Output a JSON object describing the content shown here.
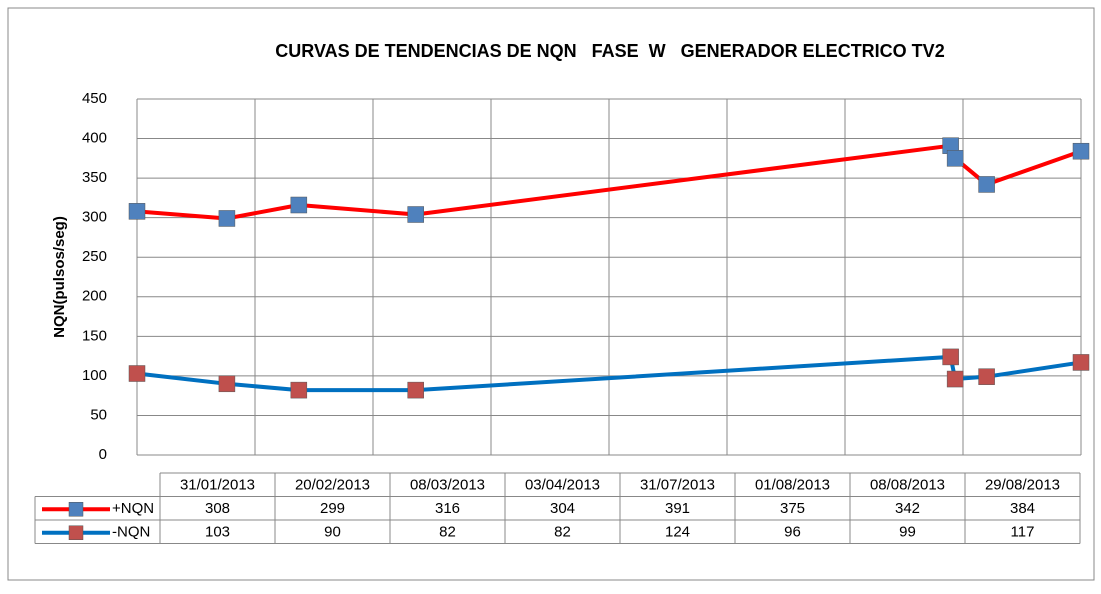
{
  "chart_data": {
    "type": "line",
    "title": "CURVAS DE TENDENCIAS DE NQN   FASE  W   GENERADOR ELECTRICO TV2",
    "y_label": "NQN(pulsos/seg)",
    "x": [
      "31/01/2013",
      "20/02/2013",
      "08/03/2013",
      "03/04/2013",
      "31/07/2013",
      "01/08/2013",
      "08/08/2013",
      "29/08/2013"
    ],
    "series": [
      {
        "name": "+NQN",
        "color": "#ff0000",
        "marker_color": "#4f81bd",
        "values": [
          308,
          299,
          316,
          304,
          391,
          375,
          342,
          384
        ]
      },
      {
        "name": "-NQN",
        "color": "#0070c0",
        "marker_color": "#c0504d",
        "values": [
          103,
          90,
          82,
          82,
          124,
          96,
          99,
          117
        ]
      }
    ],
    "xlim": [
      "31/01/2013",
      "29/08/2013"
    ],
    "ylim": [
      0,
      450
    ],
    "yticks": [
      0,
      50,
      100,
      150,
      200,
      250,
      300,
      350,
      400,
      450
    ],
    "grid": true,
    "legend": "table"
  }
}
